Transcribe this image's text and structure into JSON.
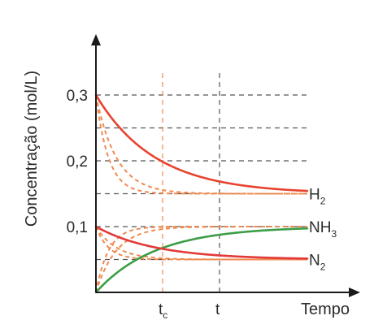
{
  "chart_data": {
    "type": "line",
    "ylabel": "Concentração (mol/L)",
    "xlabel": "Tempo",
    "ylim": [
      0,
      0.3
    ],
    "y_ticks": [
      {
        "value": 0.3,
        "label": "0,3"
      },
      {
        "value": 0.2,
        "label": "0,2"
      },
      {
        "value": 0.1,
        "label": "0,1"
      }
    ],
    "x_markers": [
      {
        "name": "tc",
        "label": "t",
        "sub": "c",
        "x": 4.1
      },
      {
        "name": "t",
        "label": "t",
        "sub": "",
        "x": 7.6
      }
    ],
    "x_max": 13,
    "grid": true,
    "y_gridlines": [
      0.3,
      0.25,
      0.2,
      0.15,
      0.1,
      0.05
    ],
    "series": [
      {
        "name": "H2",
        "label_main": "H",
        "label_sub": "2",
        "color": "#e8432e",
        "start": 0.3,
        "end": 0.15,
        "rate": 0.55
      },
      {
        "name": "NH3",
        "label_main": "NH",
        "label_sub": "3",
        "color": "#3c9d46",
        "start": 0.0,
        "end": 0.1,
        "rate": 0.55
      },
      {
        "name": "N2",
        "label_main": "N",
        "label_sub": "2",
        "color": "#e23a3a",
        "start": 0.1,
        "end": 0.05,
        "rate": 0.55
      }
    ],
    "catalyzed_series": [
      {
        "ref": "H2",
        "color": "#f08a50",
        "start": 0.3,
        "end": 0.15,
        "rate": 1.6
      },
      {
        "ref": "H2",
        "color": "#f08a50",
        "start": 0.3,
        "end": 0.15,
        "rate": 2.6
      },
      {
        "ref": "NH3",
        "color": "#f08a50",
        "start": 0.0,
        "end": 0.1,
        "rate": 1.6
      },
      {
        "ref": "NH3",
        "color": "#f08a50",
        "start": 0.0,
        "end": 0.1,
        "rate": 2.6
      },
      {
        "ref": "N2",
        "color": "#f08a50",
        "start": 0.1,
        "end": 0.05,
        "rate": 1.6
      },
      {
        "ref": "N2",
        "color": "#f08a50",
        "start": 0.1,
        "end": 0.05,
        "rate": 2.6
      }
    ],
    "colors": {
      "axis": "#1a1a1a",
      "grid": "#555555",
      "marker_line": "#f08a50"
    }
  }
}
